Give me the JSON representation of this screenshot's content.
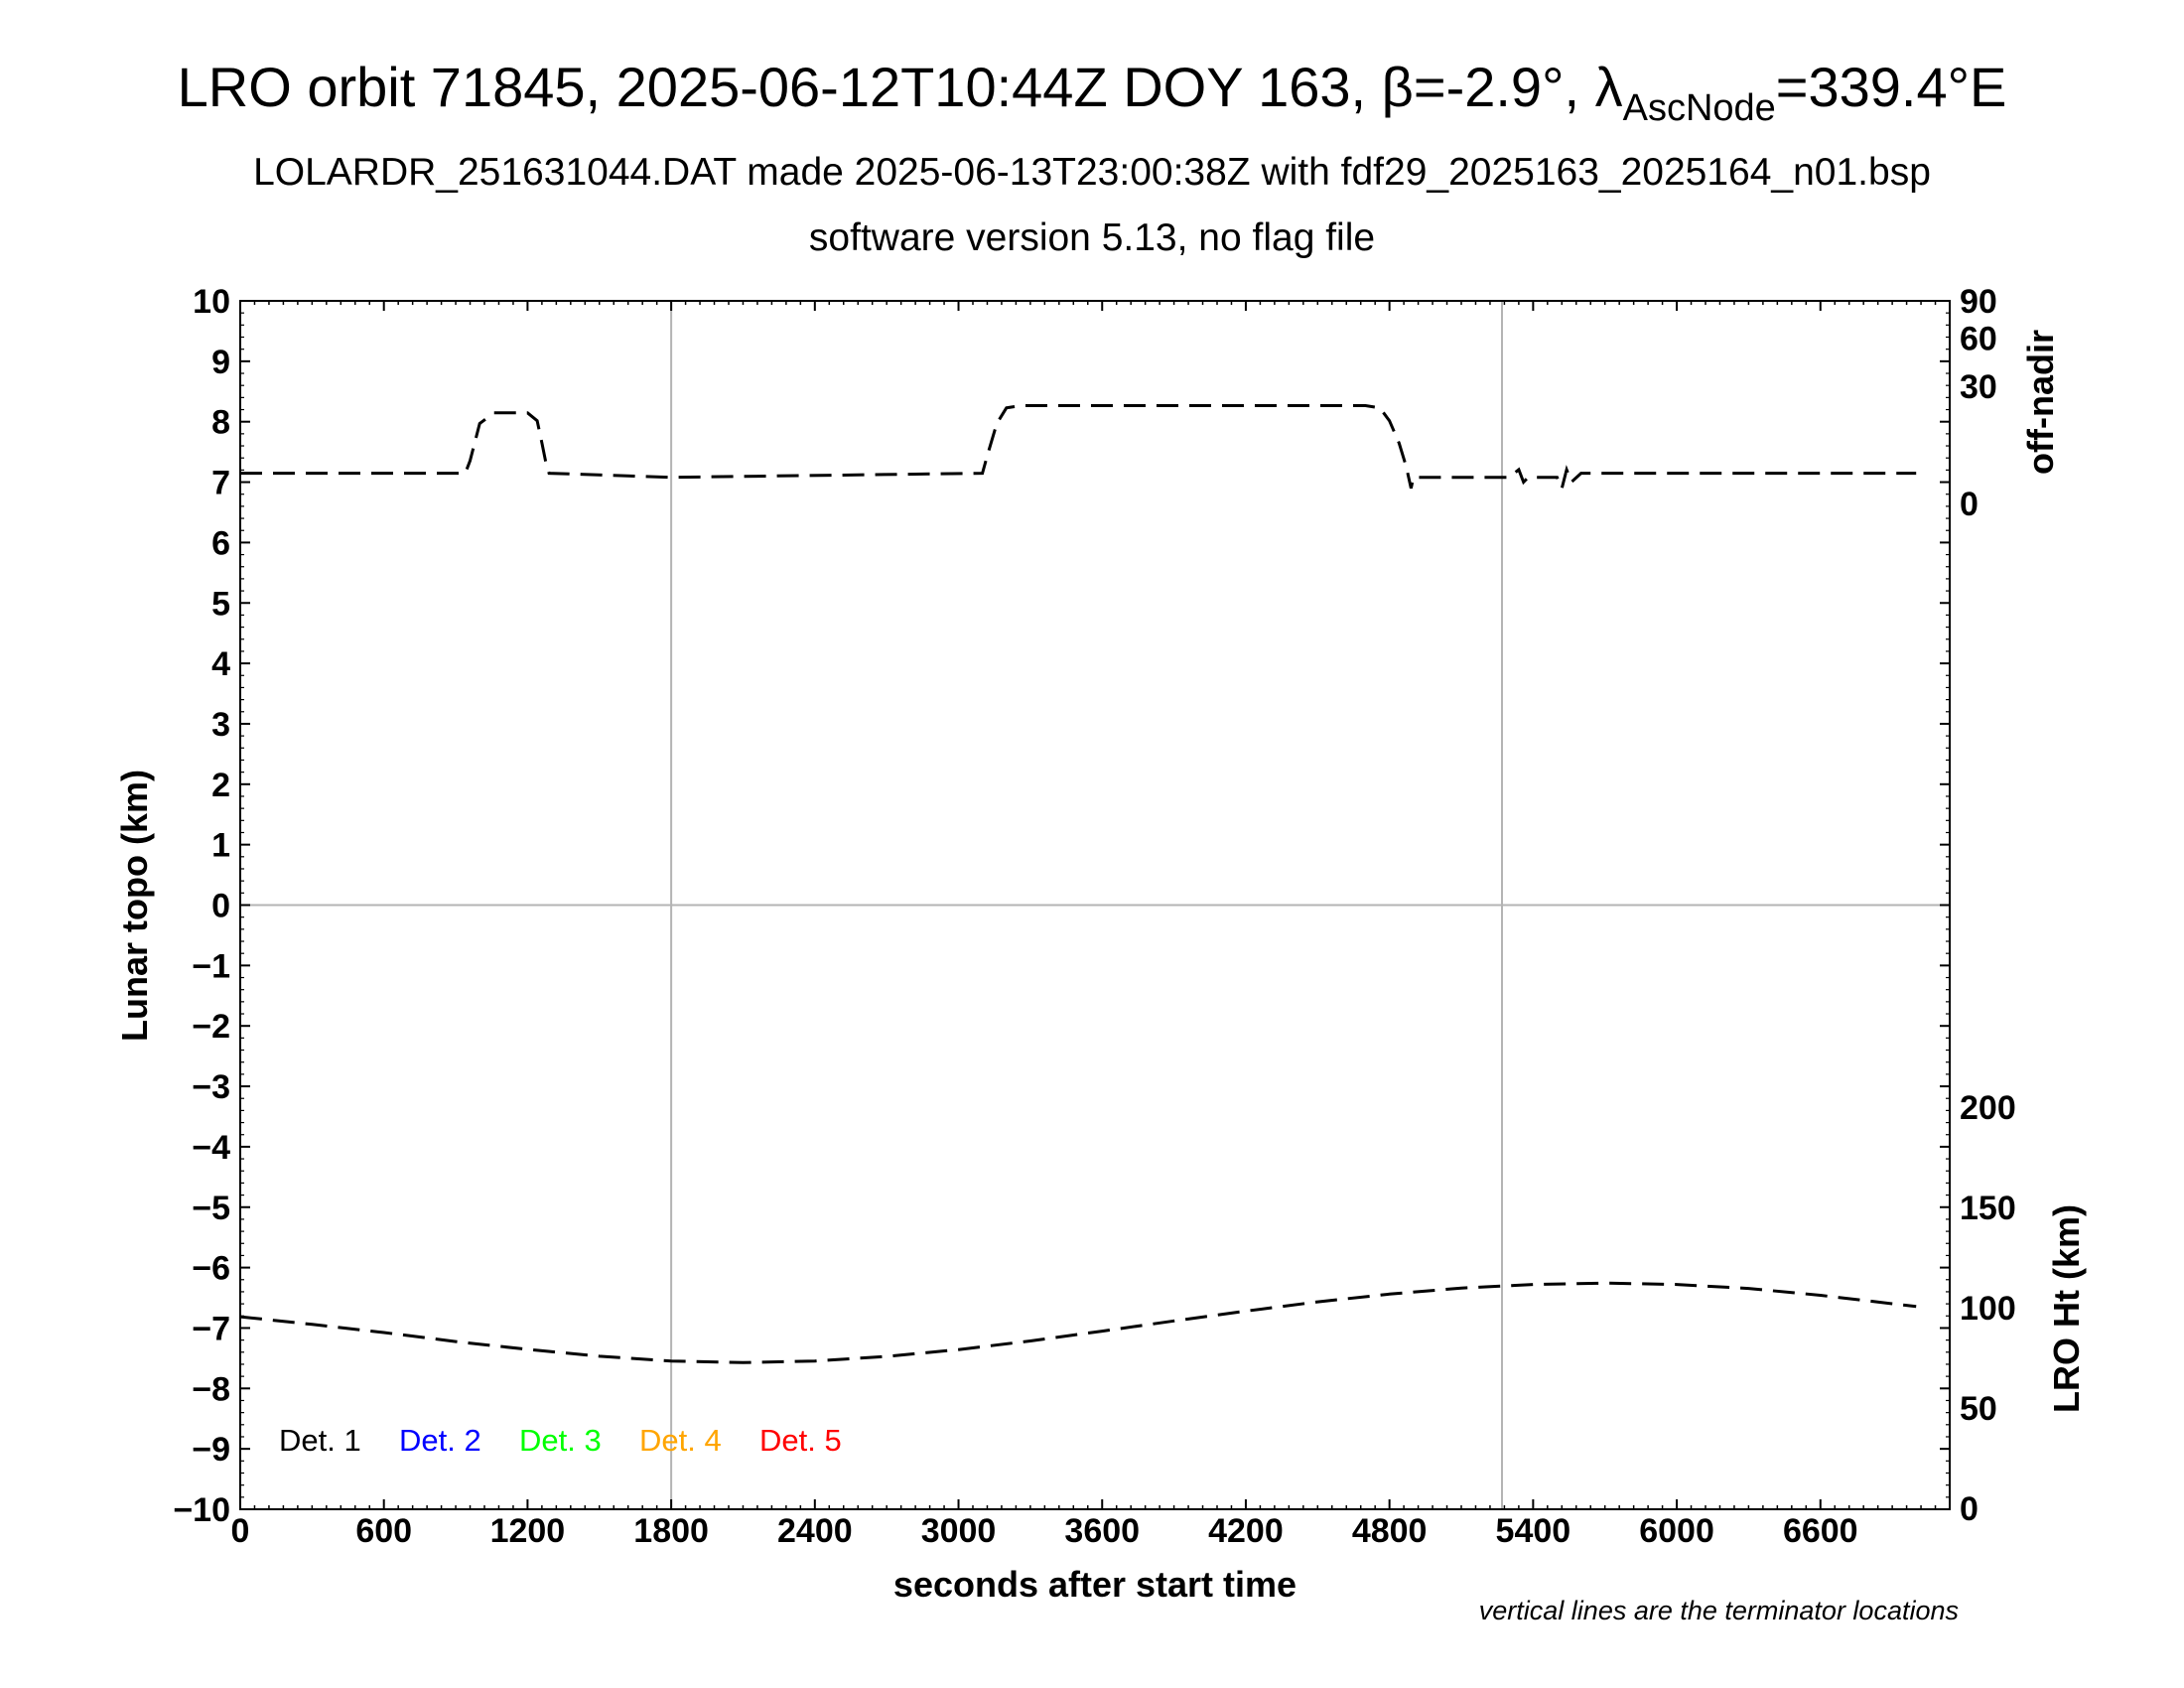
{
  "header": {
    "title_pre": "LRO orbit 71845, 2025-06-12T10:44Z DOY 163, β=-2.9°, λ",
    "title_sub": "AscNode",
    "title_post": "=339.4°E",
    "subtitle1": "LOLARDR_251631044.DAT made 2025-06-13T23:00:38Z with fdf29_2025163_2025164_n01.bsp",
    "subtitle2": "software version 5.13, no flag file"
  },
  "chart_data": {
    "type": "line",
    "xlabel": "seconds after start time",
    "ylabel": "Lunar topo (km)",
    "y2label_top": "off-nadir",
    "y2label_bottom": "LRO Ht (km)",
    "note": "vertical lines are the terminator locations",
    "xlim": [
      0,
      7140
    ],
    "ylim": [
      -10,
      10
    ],
    "x_ticks": [
      "0",
      "600",
      "1200",
      "1800",
      "2400",
      "3000",
      "3600",
      "4200",
      "4800",
      "5400",
      "6000",
      "6600"
    ],
    "y_ticks": [
      "10",
      "9",
      "8",
      "7",
      "6",
      "5",
      "4",
      "3",
      "2",
      "1",
      "0",
      "−1",
      "−2",
      "−3",
      "−4",
      "−5",
      "−6",
      "−7",
      "−8",
      "−9",
      "−10"
    ],
    "offnadir_ticks": [
      "90",
      "60",
      "30",
      "0"
    ],
    "height_ticks": [
      "200",
      "150",
      "100",
      "50",
      "0"
    ],
    "terminators": [
      1800,
      5270
    ],
    "grid": "terminator lines and zero line only",
    "legend": {
      "placement": "bottom-left",
      "items": [
        {
          "label": "Det. 1",
          "color": "#000000"
        },
        {
          "label": "Det. 2",
          "color": "#0000ff"
        },
        {
          "label": "Det. 3",
          "color": "#00ff00"
        },
        {
          "label": "Det. 4",
          "color": "#ffa500"
        },
        {
          "label": "Det. 5",
          "color": "#ff0000"
        }
      ]
    },
    "series": [
      {
        "name": "off-nadir",
        "axis": "off-nadir (deg)",
        "style": "dashed",
        "x": [
          0,
          940,
          960,
          1000,
          1060,
          1200,
          1240,
          1260,
          1275,
          1290,
          1800,
          3100,
          3120,
          3160,
          3200,
          3260,
          4700,
          4760,
          4800,
          4840,
          4870,
          4890,
          4900,
          5300,
          5340,
          5360,
          5380,
          5500,
          5520,
          5540,
          5560,
          5600,
          7000
        ],
        "y": [
          2,
          2,
          4,
          14,
          18,
          18,
          15,
          8,
          4,
          2,
          1.5,
          2,
          5,
          14,
          20,
          21,
          21,
          20,
          15,
          8,
          3,
          0.5,
          1.5,
          1.5,
          2.5,
          1,
          1.5,
          1.5,
          0.5,
          2.5,
          1,
          2,
          2
        ]
      },
      {
        "name": "LRO Ht",
        "axis": "LRO Ht (km)",
        "style": "dashed",
        "x": [
          0,
          300,
          600,
          900,
          1200,
          1500,
          1800,
          2100,
          2400,
          2700,
          3000,
          3300,
          3600,
          3900,
          4200,
          4500,
          4800,
          5100,
          5400,
          5700,
          6000,
          6300,
          6600,
          7000
        ],
        "y": [
          95.5,
          91.7,
          87.6,
          83.1,
          79.2,
          75.8,
          73.4,
          72.6,
          73.4,
          75.7,
          79.1,
          83.4,
          88.3,
          93.4,
          98.3,
          102.9,
          106.8,
          109.8,
          111.6,
          112.3,
          111.6,
          109.6,
          106.2,
          100.6
        ]
      }
    ]
  }
}
